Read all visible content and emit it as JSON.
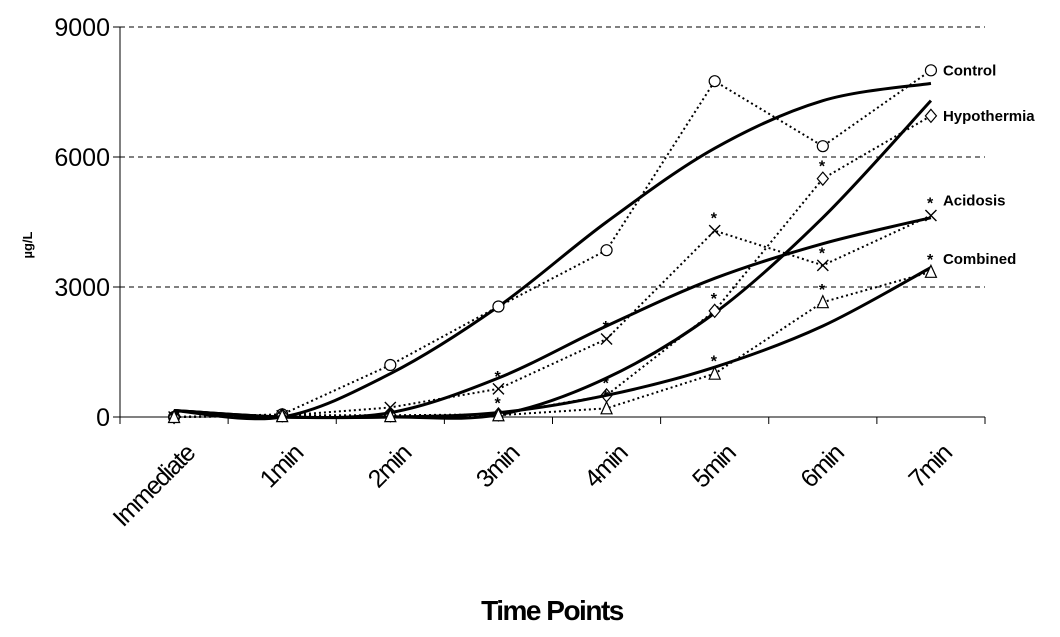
{
  "chart_data": {
    "type": "line",
    "title": "",
    "xlabel": "Time Points",
    "ylabel": "µg/L",
    "ylim": [
      0,
      9000
    ],
    "yticks": [
      0,
      3000,
      6000,
      9000
    ],
    "grid": "horizontal dashed",
    "legend": "inline labels at right end of series",
    "categories": [
      "Immediate",
      "1min",
      "2min",
      "3min",
      "4min",
      "5min",
      "6min",
      "7min"
    ],
    "series": [
      {
        "name": "Control",
        "marker": "circle",
        "values": [
          0,
          60,
          1200,
          2550,
          3850,
          7750,
          6250,
          8000
        ],
        "trend": [
          150,
          0,
          1000,
          2550,
          4500,
          6200,
          7300,
          7700
        ],
        "significant": [
          false,
          false,
          false,
          false,
          false,
          false,
          false,
          false
        ]
      },
      {
        "name": "Hypothermia",
        "marker": "diamond",
        "values": [
          0,
          40,
          40,
          60,
          500,
          2450,
          5500,
          6950
        ],
        "trend": [
          150,
          0,
          0,
          50,
          900,
          2400,
          4600,
          7300
        ],
        "significant": [
          false,
          false,
          false,
          false,
          true,
          true,
          true,
          false
        ]
      },
      {
        "name": "Acidosis",
        "marker": "cross",
        "values": [
          0,
          30,
          220,
          650,
          1800,
          4300,
          3500,
          4650
        ],
        "trend": [
          150,
          0,
          100,
          900,
          2100,
          3200,
          4000,
          4600
        ],
        "significant": [
          false,
          false,
          false,
          true,
          true,
          true,
          true,
          true
        ]
      },
      {
        "name": "Combined",
        "marker": "triangle",
        "values": [
          0,
          20,
          20,
          40,
          200,
          1000,
          2650,
          3350
        ],
        "trend": [
          150,
          0,
          0,
          100,
          500,
          1150,
          2100,
          3450
        ],
        "significant": [
          false,
          false,
          false,
          true,
          true,
          true,
          true,
          true
        ]
      }
    ]
  }
}
